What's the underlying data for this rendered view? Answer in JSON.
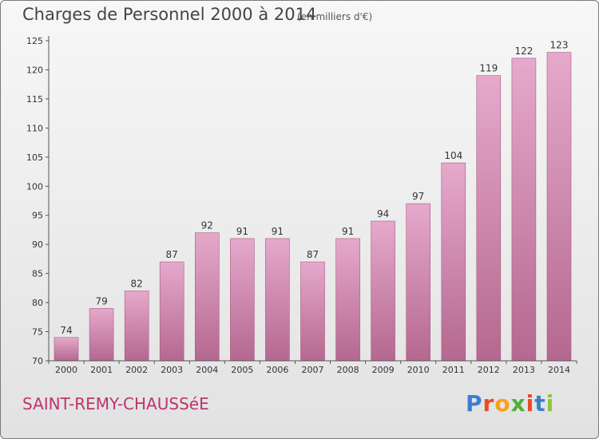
{
  "header": {
    "title": "Charges de Personnel 2000 à 2014",
    "unit": "(en milliers d'€)"
  },
  "footer": {
    "commune": "SAINT-REMY-CHAUSSéE",
    "brand": "Proxiti"
  },
  "colors": {
    "bar_top": "#e5a9cc",
    "bar_bottom": "#b5688f",
    "commune_text": "#c0336c"
  },
  "chart_data": {
    "type": "bar",
    "categories": [
      "2000",
      "2001",
      "2002",
      "2003",
      "2004",
      "2005",
      "2006",
      "2007",
      "2008",
      "2009",
      "2010",
      "2011",
      "2012",
      "2013",
      "2014"
    ],
    "values": [
      74,
      79,
      82,
      87,
      92,
      91,
      91,
      87,
      91,
      94,
      97,
      104,
      119,
      122,
      123
    ],
    "ylim": [
      70,
      125
    ],
    "yticks": [
      70,
      75,
      80,
      85,
      90,
      95,
      100,
      105,
      110,
      115,
      120,
      125
    ],
    "data_labels": true,
    "grid": false,
    "legend": "none"
  }
}
